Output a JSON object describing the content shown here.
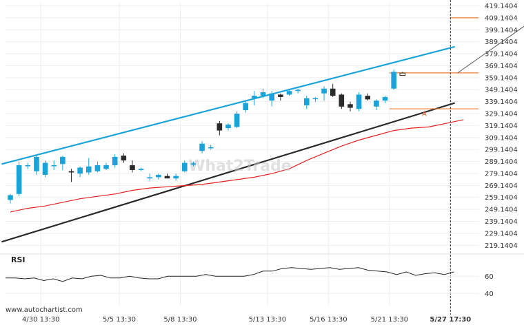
{
  "watermark": "What2Trade",
  "footer": "www.autochartist.com",
  "rsi": {
    "title": "RSI",
    "ticks": [
      60,
      40
    ],
    "ylim": [
      25,
      85
    ],
    "values": [
      58,
      58,
      57,
      58,
      55,
      57,
      54,
      58,
      57,
      60,
      61,
      58,
      58,
      60,
      58,
      57,
      57,
      60,
      60,
      60,
      60,
      62,
      60,
      60,
      60,
      60,
      62,
      66,
      66,
      69,
      70,
      69,
      68,
      69,
      70,
      68,
      69,
      70,
      67,
      66,
      65,
      62,
      65,
      61,
      63,
      64,
      62,
      65
    ]
  },
  "chart_data": {
    "type": "candlestick",
    "ylim": [
      214.1404,
      421.1404
    ],
    "y_ticks": [
      419.1404,
      409.1404,
      399.1404,
      389.1404,
      379.1404,
      369.1404,
      359.1404,
      349.1404,
      339.1404,
      329.1404,
      319.1404,
      309.1404,
      299.1404,
      289.1404,
      279.1404,
      269.1404,
      259.1404,
      249.1404,
      239.1404,
      229.1404,
      219.1404
    ],
    "x_tick_labels": [
      "4/30 13:30",
      "5/5 13:30",
      "5/8 13:30",
      "5/13 13:30",
      "5/16 13:30",
      "5/21 13:30",
      "5/27 17:30"
    ],
    "x_tick_index": [
      3.5,
      12.5,
      19.5,
      29.5,
      36.5,
      43.5,
      50.5
    ],
    "n_slots": 53,
    "current_time_index": 50.5,
    "candles": [
      {
        "o": 257,
        "h": 262,
        "l": 254,
        "c": 261
      },
      {
        "o": 262,
        "h": 289,
        "l": 260,
        "c": 286
      },
      {
        "o": 286,
        "h": 288,
        "l": 283,
        "c": 286
      },
      {
        "o": 281,
        "h": 294,
        "l": 278,
        "c": 293
      },
      {
        "o": 278,
        "h": 290,
        "l": 276,
        "c": 288
      },
      {
        "o": 286,
        "h": 290,
        "l": 282,
        "c": 286
      },
      {
        "o": 287,
        "h": 294,
        "l": 282,
        "c": 293
      },
      {
        "o": 281,
        "h": 283,
        "l": 272,
        "c": 280
      },
      {
        "o": 279,
        "h": 285,
        "l": 276,
        "c": 284
      },
      {
        "o": 280,
        "h": 292,
        "l": 278,
        "c": 285
      },
      {
        "o": 281,
        "h": 289,
        "l": 280,
        "c": 286
      },
      {
        "o": 283,
        "h": 288,
        "l": 282,
        "c": 286
      },
      {
        "o": 286,
        "h": 295,
        "l": 284,
        "c": 293
      },
      {
        "o": 294,
        "h": 296,
        "l": 288,
        "c": 290
      },
      {
        "o": 286,
        "h": 290,
        "l": 280,
        "c": 282
      },
      {
        "o": 282,
        "h": 284,
        "l": 281,
        "c": 283
      },
      {
        "o": 275,
        "h": 279,
        "l": 273,
        "c": 276
      },
      {
        "o": 276,
        "h": 279,
        "l": 274,
        "c": 278
      },
      {
        "o": 277,
        "h": 279,
        "l": 275,
        "c": 275
      },
      {
        "o": 275,
        "h": 279,
        "l": 273,
        "c": 277
      },
      {
        "o": 281,
        "h": 290,
        "l": 280,
        "c": 288
      },
      {
        "o": 286,
        "h": 289,
        "l": 285,
        "c": 288
      },
      {
        "o": 298,
        "h": 306,
        "l": 296,
        "c": 304
      },
      {
        "o": 301,
        "h": 303,
        "l": 299,
        "c": 301
      },
      {
        "o": 321,
        "h": 323,
        "l": 311,
        "c": 315
      },
      {
        "o": 317,
        "h": 321,
        "l": 315,
        "c": 320
      },
      {
        "o": 318,
        "h": 331,
        "l": 317,
        "c": 329
      },
      {
        "o": 332,
        "h": 340,
        "l": 330,
        "c": 338
      },
      {
        "o": 342,
        "h": 348,
        "l": 336,
        "c": 344
      },
      {
        "o": 344,
        "h": 350,
        "l": 342,
        "c": 347
      },
      {
        "o": 340,
        "h": 348,
        "l": 335,
        "c": 346
      },
      {
        "o": 345,
        "h": 346,
        "l": 340,
        "c": 343
      },
      {
        "o": 345,
        "h": 349,
        "l": 344,
        "c": 348
      },
      {
        "o": 348,
        "h": 350,
        "l": 346,
        "c": 349
      },
      {
        "o": 336,
        "h": 344,
        "l": 333,
        "c": 342
      },
      {
        "o": 342,
        "h": 343,
        "l": 339,
        "c": 342
      },
      {
        "o": 346,
        "h": 352,
        "l": 340,
        "c": 350
      },
      {
        "o": 350,
        "h": 354,
        "l": 343,
        "c": 344
      },
      {
        "o": 345,
        "h": 346,
        "l": 333,
        "c": 335
      },
      {
        "o": 337,
        "h": 339,
        "l": 331,
        "c": 334
      },
      {
        "o": 333,
        "h": 347,
        "l": 331,
        "c": 345
      },
      {
        "o": 344,
        "h": 346,
        "l": 340,
        "c": 341
      },
      {
        "o": 335,
        "h": 341,
        "l": 332,
        "c": 340
      },
      {
        "o": 340,
        "h": 344,
        "l": 338,
        "c": 343
      },
      {
        "o": 350,
        "h": 366,
        "l": 349,
        "c": 364
      },
      {
        "o": 363,
        "h": 364,
        "l": 361,
        "c": 361
      }
    ],
    "moving_average": [
      [
        0,
        247
      ],
      [
        2,
        250
      ],
      [
        4,
        252
      ],
      [
        6,
        255
      ],
      [
        8,
        258
      ],
      [
        10,
        260
      ],
      [
        12,
        262
      ],
      [
        14,
        265
      ],
      [
        16,
        267
      ],
      [
        18,
        268
      ],
      [
        20,
        269
      ],
      [
        22,
        270
      ],
      [
        24,
        272
      ],
      [
        26,
        274
      ],
      [
        28,
        276
      ],
      [
        30,
        279
      ],
      [
        32,
        283
      ],
      [
        34,
        290
      ],
      [
        36,
        296
      ],
      [
        38,
        302
      ],
      [
        40,
        307
      ],
      [
        42,
        311
      ],
      [
        44,
        315
      ],
      [
        46,
        317
      ],
      [
        48,
        318
      ],
      [
        50,
        321
      ],
      [
        52,
        324
      ]
    ],
    "channel_upper": [
      [
        -1,
        287
      ],
      [
        51,
        385
      ]
    ],
    "channel_lower": [
      [
        -1,
        222
      ],
      [
        51,
        338
      ]
    ],
    "target_levels": [
      409.1404,
      363.1404,
      333.1404
    ],
    "target_line_x_start": [
      50.5,
      43.5,
      43.5
    ],
    "projection": {
      "from": [
        51.3,
        363
      ],
      "to": [
        60.5,
        410
      ]
    },
    "annotations": [
      {
        "text": "A",
        "x": 47.5,
        "y": 327
      }
    ]
  }
}
